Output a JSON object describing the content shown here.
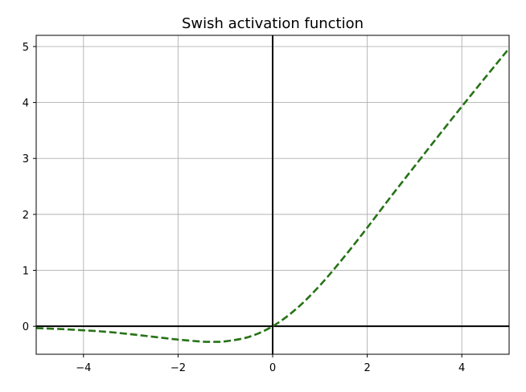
{
  "chart_data": {
    "type": "line",
    "title": "Swish activation function",
    "xlabel": "",
    "ylabel": "",
    "xlim": [
      -5,
      5
    ],
    "ylim": [
      -0.5,
      5.2
    ],
    "xticks": [
      -4,
      -2,
      0,
      2,
      4
    ],
    "xtick_labels": [
      "−4",
      "−2",
      "0",
      "2",
      "4"
    ],
    "yticks": [
      0,
      1,
      2,
      3,
      4,
      5
    ],
    "ytick_labels": [
      "0",
      "1",
      "2",
      "3",
      "4",
      "5"
    ],
    "grid": true,
    "reference_lines": {
      "x": 0,
      "y": 0,
      "color": "#000000"
    },
    "series": [
      {
        "color": "#267316",
        "linestyle": "dashed",
        "x": [
          -5.0,
          -4.5,
          -4.0,
          -3.5,
          -3.0,
          -2.5,
          -2.0,
          -1.5,
          -1.278,
          -1.0,
          -0.5,
          0.0,
          0.5,
          1.0,
          1.5,
          2.0,
          2.5,
          3.0,
          3.5,
          4.0,
          4.5,
          5.0
        ],
        "y": [
          -0.033,
          -0.049,
          -0.072,
          -0.1,
          -0.142,
          -0.19,
          -0.238,
          -0.274,
          -0.278,
          -0.269,
          -0.189,
          0.0,
          0.311,
          0.731,
          1.227,
          1.762,
          2.317,
          2.858,
          3.397,
          3.928,
          4.451,
          4.967
        ]
      }
    ]
  }
}
